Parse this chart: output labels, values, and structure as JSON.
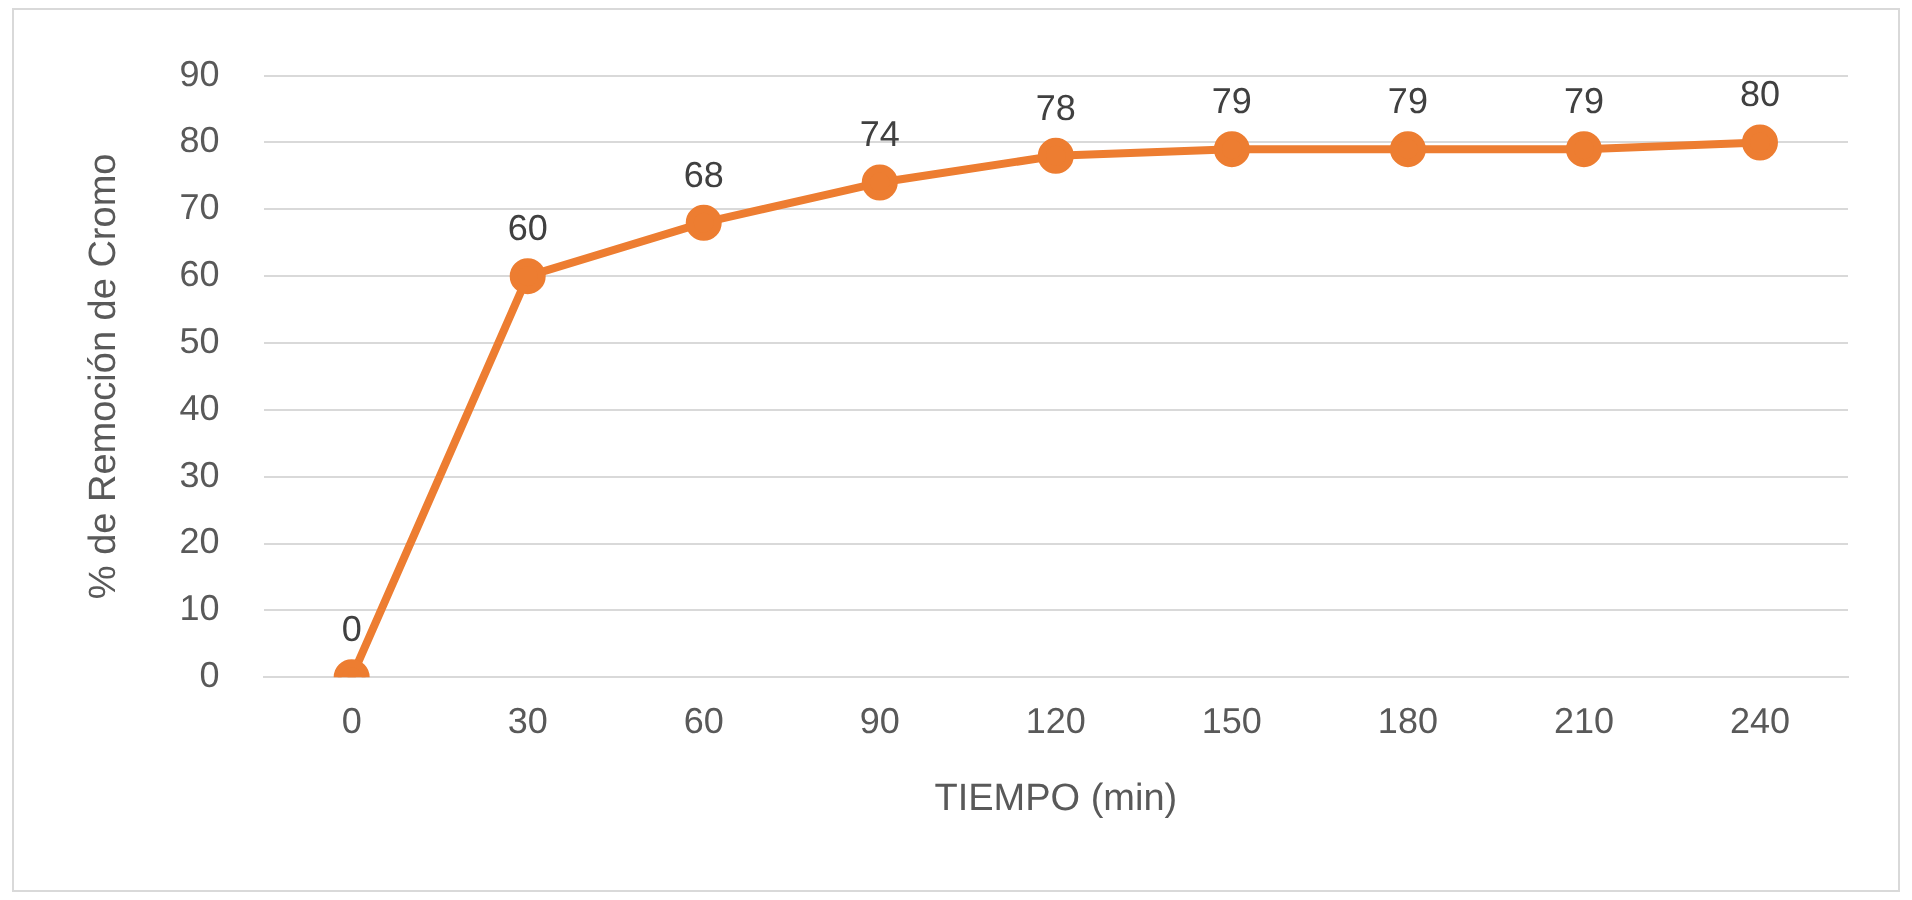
{
  "chart_data": {
    "type": "line",
    "xlabel": "TIEMPO (min)",
    "ylabel": "% de Remoción de Cromo",
    "categories": [
      "0",
      "30",
      "60",
      "90",
      "120",
      "150",
      "180",
      "210",
      "240"
    ],
    "series": [
      {
        "color": "#ed7d31",
        "values": [
          0,
          60,
          68,
          74,
          78,
          79,
          79,
          79,
          80
        ]
      }
    ],
    "ylim": [
      0,
      90
    ],
    "yticks": [
      0,
      10,
      20,
      30,
      40,
      50,
      60,
      70,
      80,
      90
    ],
    "grid": "y",
    "legend": false,
    "marker": "circle",
    "line_style": "solid",
    "data_labels": true
  }
}
